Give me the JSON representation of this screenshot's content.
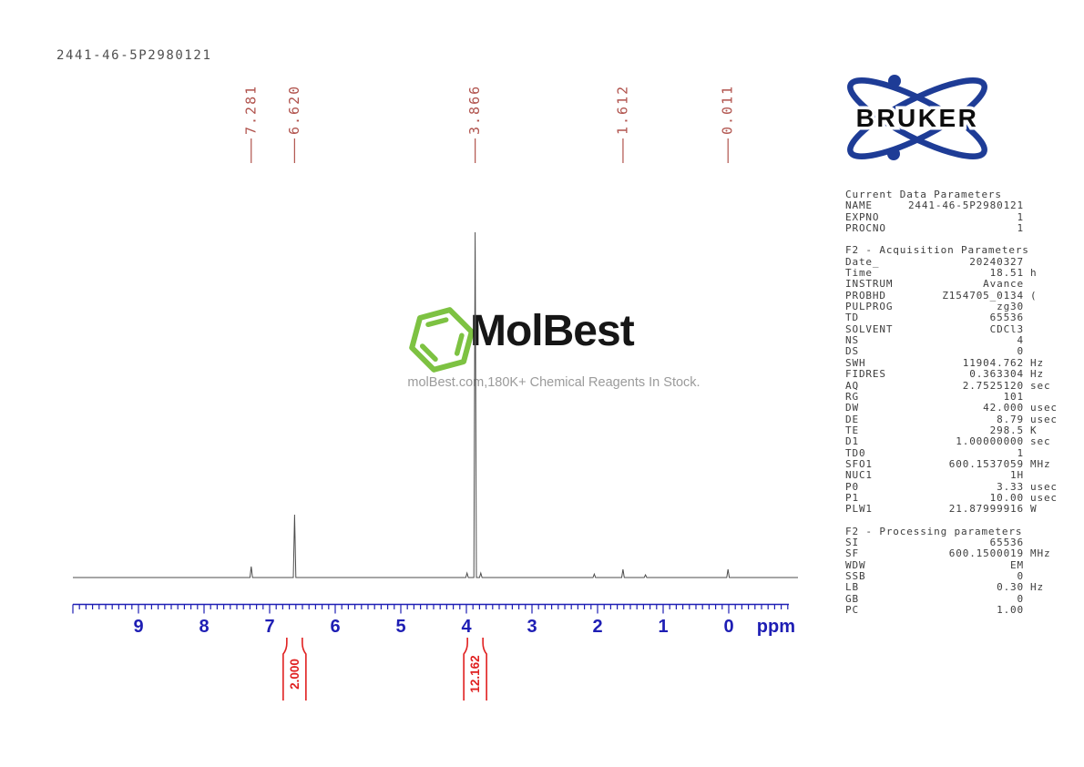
{
  "page": {
    "title": "2441-46-5P2980121"
  },
  "watermark": {
    "brand": "MolBest",
    "tagline": "molBest.com,180K+ Chemical Reagents In Stock.",
    "hex_color": "#7dc242"
  },
  "bruker": {
    "label": "BRUKER",
    "blue": "#1e3c96",
    "text_color": "#0d0d0d"
  },
  "colors": {
    "peak_label": "#b0524c",
    "integral": "#e02020",
    "axis": "#1e1eb4",
    "trace": "#4d4d4d"
  },
  "axis": {
    "unit_label": "ppm",
    "start_ppm": 10.0,
    "end_ppm": -0.9,
    "minor_step": 0.1,
    "major_labels": [
      9,
      8,
      7,
      6,
      5,
      4,
      3,
      2,
      1,
      0
    ]
  },
  "chart_data": {
    "type": "line",
    "title": "1H NMR spectrum 2441-46-5P2980121",
    "xlabel": "ppm",
    "x_axis_reversed": true,
    "x_range": [
      10.0,
      -0.9
    ],
    "peaks": [
      {
        "ppm": 7.281,
        "rel_height": 0.032,
        "label": "7.281"
      },
      {
        "ppm": 6.62,
        "rel_height": 0.182,
        "label": "6.620"
      },
      {
        "ppm": 3.99,
        "rel_height": 0.013
      },
      {
        "ppm": 3.866,
        "rel_height": 1.0,
        "label": "3.866"
      },
      {
        "ppm": 3.78,
        "rel_height": 0.013
      },
      {
        "ppm": 2.05,
        "rel_height": 0.01
      },
      {
        "ppm": 1.612,
        "rel_height": 0.024,
        "label": "1.612"
      },
      {
        "ppm": 1.27,
        "rel_height": 0.008
      },
      {
        "ppm": 0.011,
        "rel_height": 0.024,
        "label": "0.011"
      }
    ],
    "integrals": [
      {
        "ppm": 6.62,
        "value": "2.000"
      },
      {
        "ppm": 3.866,
        "value": "12.162"
      }
    ]
  },
  "parameters": {
    "sections": [
      {
        "header": "Current Data Parameters",
        "rows": [
          {
            "n": "NAME",
            "v": "2441-46-5P2980121",
            "u": ""
          },
          {
            "n": "EXPNO",
            "v": "1",
            "u": ""
          },
          {
            "n": "PROCNO",
            "v": "1",
            "u": ""
          }
        ]
      },
      {
        "header": "F2 - Acquisition Parameters",
        "rows": [
          {
            "n": "Date_",
            "v": "20240327",
            "u": ""
          },
          {
            "n": "Time",
            "v": "18.51",
            "u": "h"
          },
          {
            "n": "INSTRUM",
            "v": "Avance",
            "u": ""
          },
          {
            "n": "PROBHD",
            "v": "Z154705_0134",
            "u": "("
          },
          {
            "n": "PULPROG",
            "v": "zg30",
            "u": ""
          },
          {
            "n": "TD",
            "v": "65536",
            "u": ""
          },
          {
            "n": "SOLVENT",
            "v": "CDCl3",
            "u": ""
          },
          {
            "n": "NS",
            "v": "4",
            "u": ""
          },
          {
            "n": "DS",
            "v": "0",
            "u": ""
          },
          {
            "n": "SWH",
            "v": "11904.762",
            "u": "Hz"
          },
          {
            "n": "FIDRES",
            "v": "0.363304",
            "u": "Hz"
          },
          {
            "n": "AQ",
            "v": "2.7525120",
            "u": "sec"
          },
          {
            "n": "RG",
            "v": "101",
            "u": ""
          },
          {
            "n": "DW",
            "v": "42.000",
            "u": "usec"
          },
          {
            "n": "DE",
            "v": "8.79",
            "u": "usec"
          },
          {
            "n": "TE",
            "v": "298.5",
            "u": "K"
          },
          {
            "n": "D1",
            "v": "1.00000000",
            "u": "sec"
          },
          {
            "n": "TD0",
            "v": "1",
            "u": ""
          },
          {
            "n": "SFO1",
            "v": "600.1537059",
            "u": "MHz"
          },
          {
            "n": "NUC1",
            "v": "1H",
            "u": ""
          },
          {
            "n": "P0",
            "v": "3.33",
            "u": "usec"
          },
          {
            "n": "P1",
            "v": "10.00",
            "u": "usec"
          },
          {
            "n": "PLW1",
            "v": "21.87999916",
            "u": "W"
          }
        ]
      },
      {
        "header": "F2 - Processing parameters",
        "rows": [
          {
            "n": "SI",
            "v": "65536",
            "u": ""
          },
          {
            "n": "SF",
            "v": "600.1500019",
            "u": "MHz"
          },
          {
            "n": "WDW",
            "v": "EM",
            "u": ""
          },
          {
            "n": "SSB",
            "v": "0",
            "u": ""
          },
          {
            "n": "LB",
            "v": "0.30",
            "u": "Hz"
          },
          {
            "n": "GB",
            "v": "0",
            "u": ""
          },
          {
            "n": "PC",
            "v": "1.00",
            "u": ""
          }
        ]
      }
    ]
  }
}
